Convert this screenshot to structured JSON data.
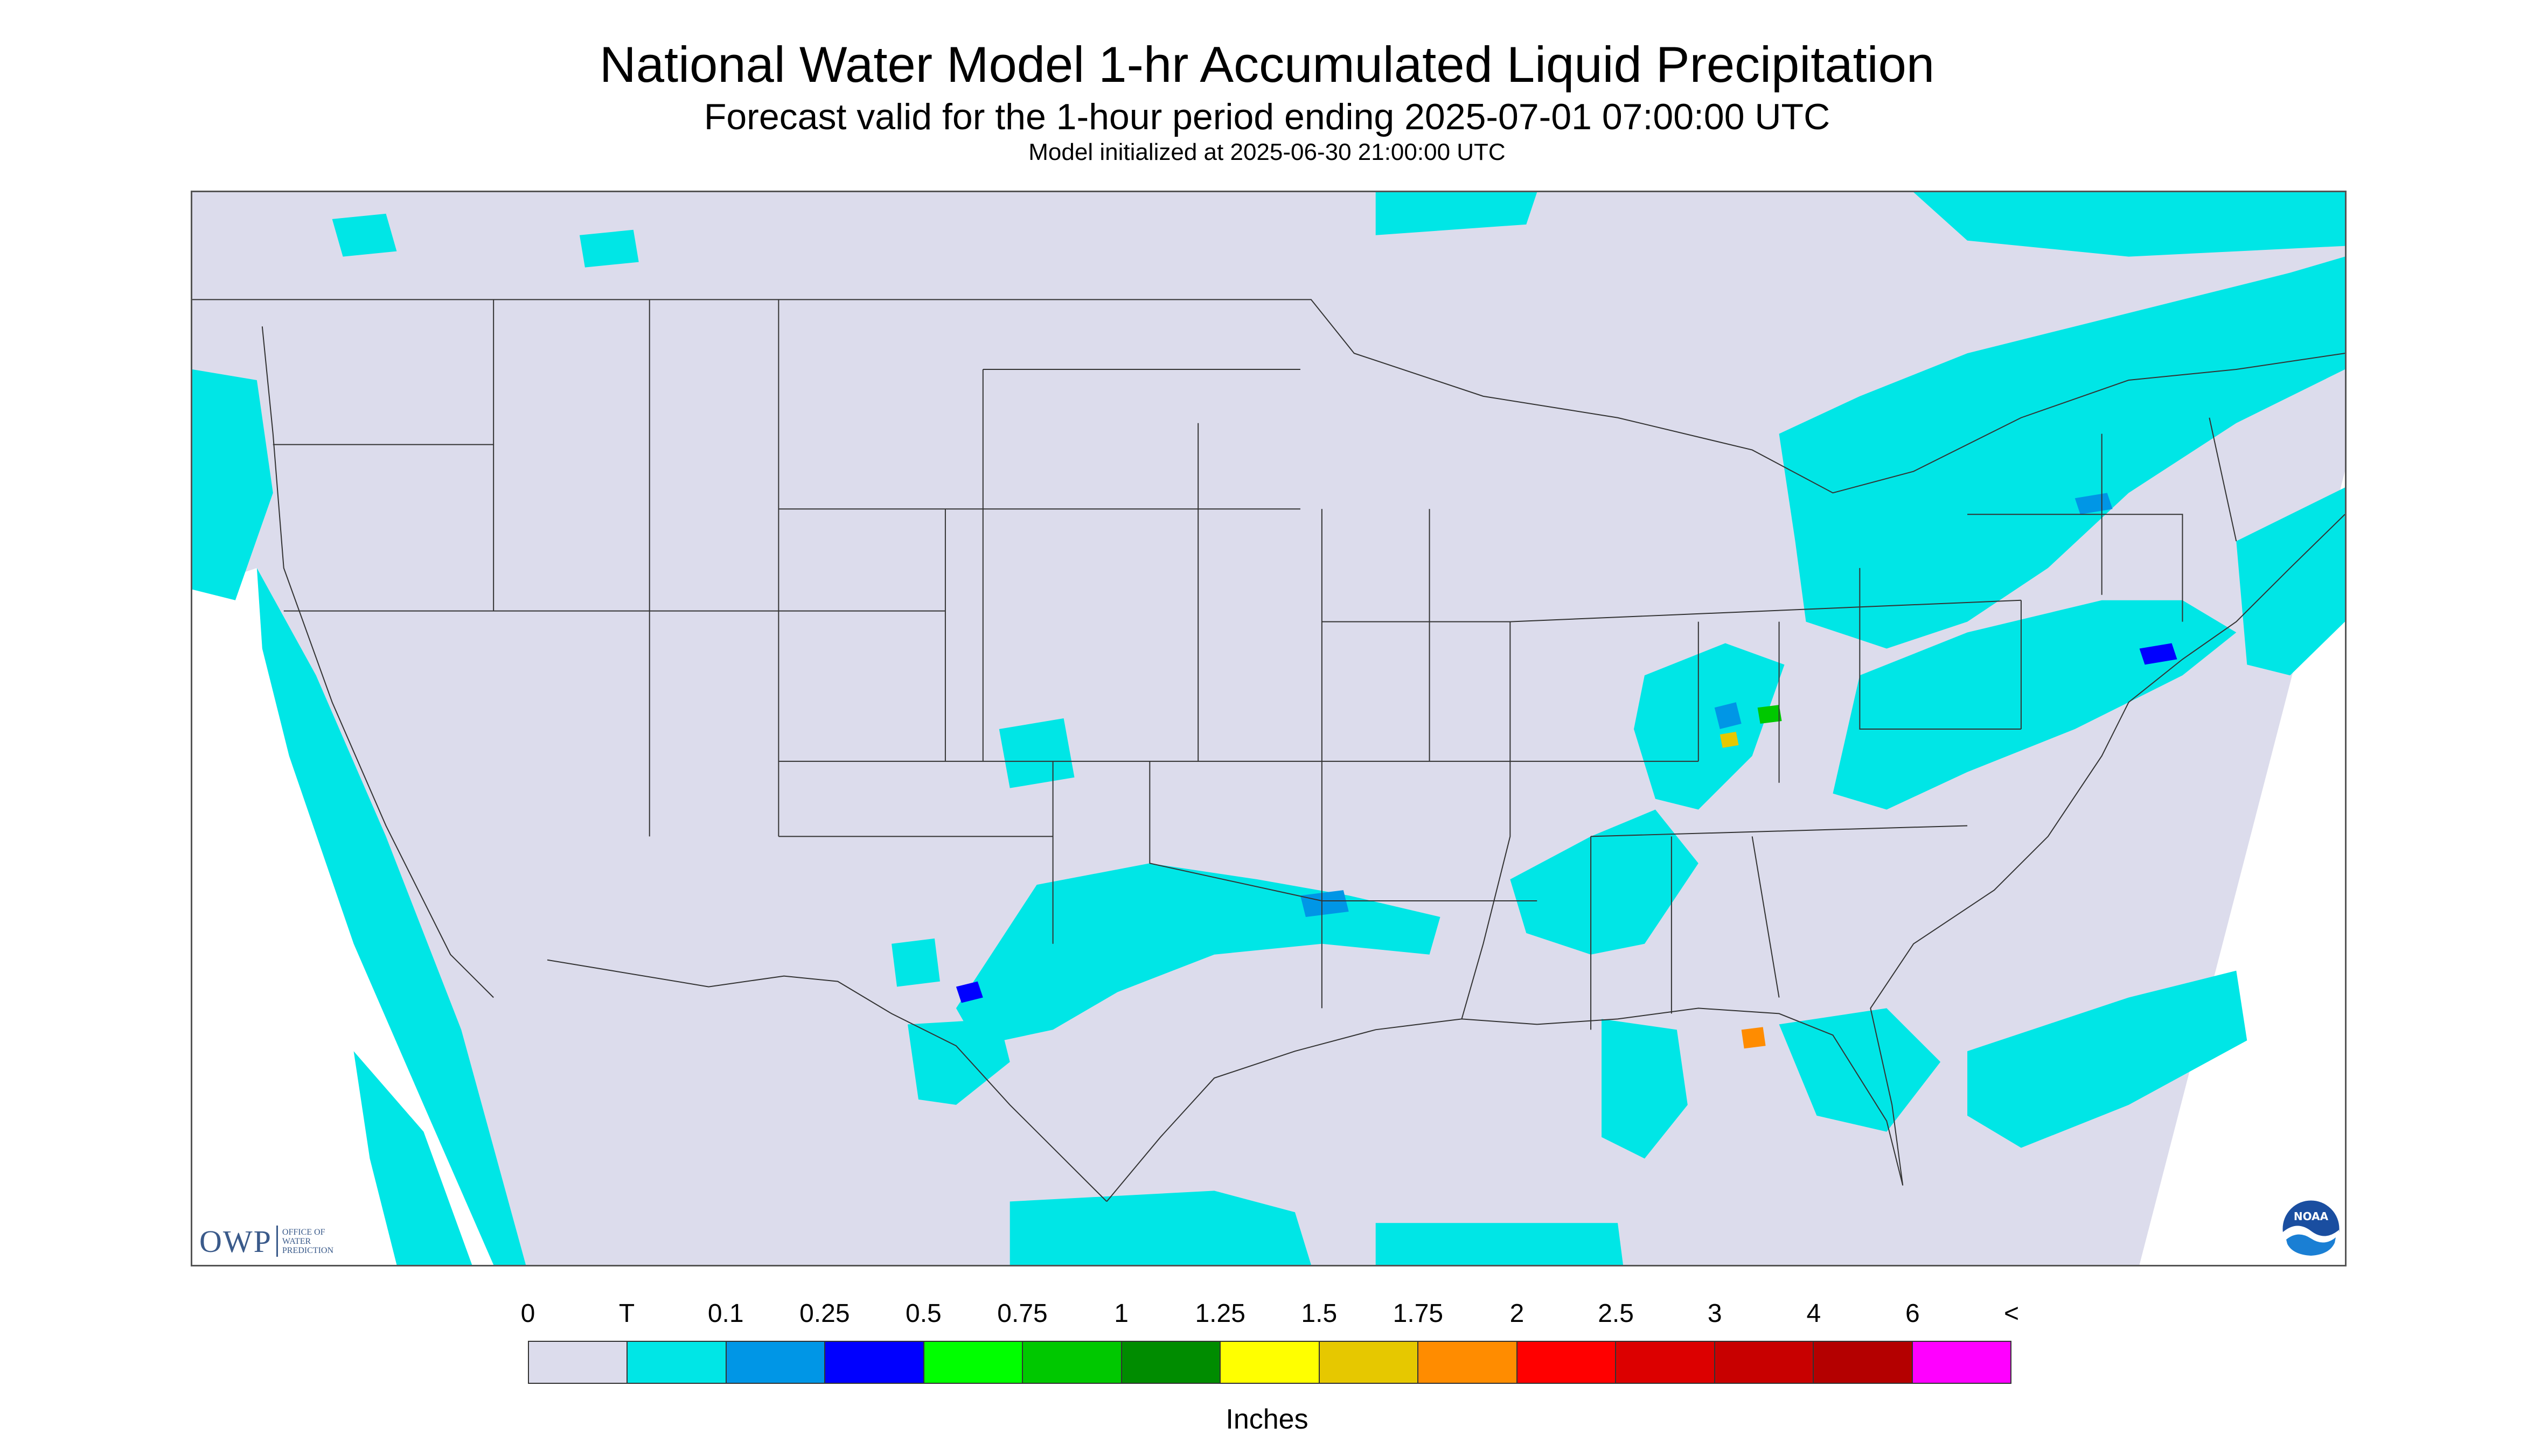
{
  "titles": {
    "main": "National Water Model 1-hr Accumulated Liquid Precipitation",
    "sub": "Forecast valid for the 1-hour period ending 2025-07-01 07:00:00 UTC",
    "init": "Model initialized at 2025-06-30 21:00:00 UTC"
  },
  "logos": {
    "owp_abbr": "OWP",
    "owp_text": "OFFICE OF\nWATER\nPREDICTION",
    "noaa_text": "NOAA"
  },
  "map": {
    "background_color": "#dcdcec",
    "outside_color": "#ffffff",
    "border_color": "#333333"
  },
  "legend": {
    "labels": [
      "0",
      "T",
      "0.1",
      "0.25",
      "0.5",
      "0.75",
      "1",
      "1.25",
      "1.5",
      "1.75",
      "2",
      "2.5",
      "3",
      "4",
      "6",
      "<"
    ],
    "colors": [
      "#dcdcec",
      "#00e6e6",
      "#0096e6",
      "#0000ff",
      "#00ff00",
      "#00c800",
      "#008c00",
      "#ffff00",
      "#e6c800",
      "#ff8c00",
      "#ff0000",
      "#dc0000",
      "#c80000",
      "#b40000",
      "#ff00ff",
      "#9650c8"
    ],
    "units": "Inches"
  }
}
